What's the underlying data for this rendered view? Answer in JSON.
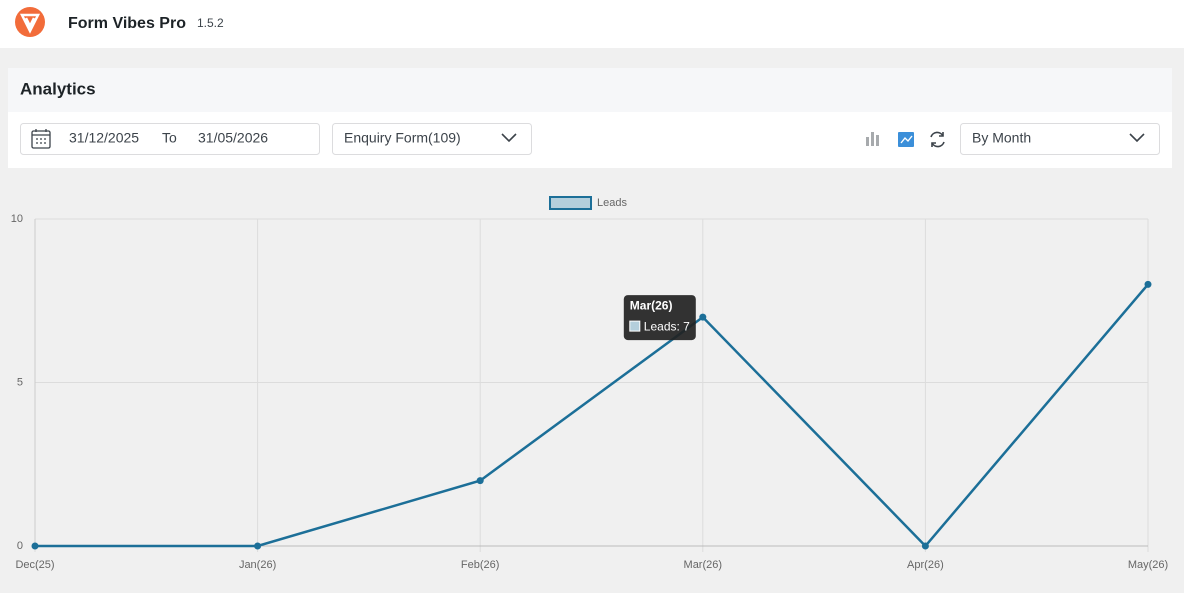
{
  "header": {
    "title": "Form Vibes Pro",
    "version": "1.5.2"
  },
  "panel": {
    "title": "Analytics"
  },
  "toolbar": {
    "date_from": "31/12/2025",
    "date_separator": "To",
    "date_to": "31/05/2026",
    "form_select": "Enquiry Form(109)",
    "period_select": "By Month"
  },
  "chart_data": {
    "type": "line",
    "categories": [
      "Dec(25)",
      "Jan(26)",
      "Feb(26)",
      "Mar(26)",
      "Apr(26)",
      "May(26)"
    ],
    "series": [
      {
        "name": "Leads",
        "color": "#1c6f98",
        "values": [
          0,
          0,
          2,
          7,
          0,
          8
        ]
      }
    ],
    "ylim": [
      0,
      10
    ],
    "yticks": [
      0,
      5,
      10
    ],
    "grid": true,
    "legend": "top",
    "tooltip": {
      "title": "Mar(26)",
      "text": "Leads: 7"
    }
  }
}
